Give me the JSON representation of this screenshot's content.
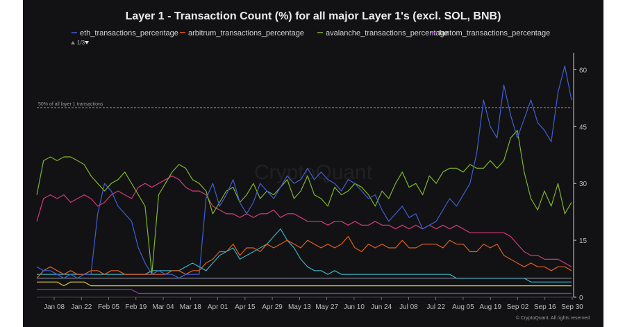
{
  "chart_data": {
    "type": "line",
    "title": "Layer 1 - Transaction Count (%) for all major Layer 1's (excl. SOL, BNB)",
    "xlabel": "",
    "ylabel": "",
    "ylim": [
      0,
      63
    ],
    "yticks": [
      0,
      15,
      30,
      45,
      60
    ],
    "xticks": [
      "Jan 08",
      "Jan 22",
      "Feb 05",
      "Feb 19",
      "Mar 04",
      "Mar 18",
      "Apr 01",
      "Apr 15",
      "Apr 29",
      "May 13",
      "May 27",
      "Jun 10",
      "Jun 24",
      "Jul 08",
      "Jul 22",
      "Aug 05",
      "Aug 19",
      "Sep 02",
      "Sep 16",
      "Sep 30"
    ],
    "legend_position": "top",
    "legend_pager": "1/3",
    "grid": false,
    "reference_line": {
      "y": 50,
      "label": "50% of all layer 1 transactions"
    },
    "watermark": "CryptoQuant",
    "credits": "© CryptoQuant. All rights reserved",
    "series": [
      {
        "name": "eth_transactions_percentage",
        "color": "#3f5fd6",
        "legend": true,
        "values": [
          8,
          7,
          7,
          6,
          5,
          6,
          5,
          6,
          6,
          22,
          30,
          28,
          24,
          22,
          20,
          13,
          9,
          6,
          7,
          6,
          6,
          5,
          6,
          6,
          6,
          26,
          30,
          24,
          27,
          31,
          25,
          22,
          25,
          30,
          28,
          26,
          29,
          32,
          30,
          31,
          34,
          31,
          33,
          31,
          30,
          28,
          31,
          30,
          28,
          26,
          27,
          23,
          20,
          22,
          24,
          21,
          22,
          18,
          19,
          20,
          23,
          26,
          24,
          27,
          30,
          38,
          52,
          45,
          42,
          56,
          48,
          42,
          47,
          52,
          46,
          44,
          41,
          54,
          61,
          52
        ]
      },
      {
        "name": "arbitrum_transactions_percentage",
        "color": "#e0621e",
        "legend": true,
        "values": [
          5,
          7,
          8,
          7,
          6,
          7,
          6,
          6,
          7,
          7,
          6,
          7,
          7,
          6,
          6,
          6,
          6,
          6,
          6,
          6,
          7,
          7,
          6,
          7,
          7,
          9,
          10,
          12,
          12,
          14,
          11,
          13,
          13,
          12,
          14,
          13,
          14,
          15,
          14,
          13,
          15,
          14,
          13,
          14,
          13,
          14,
          16,
          13,
          12,
          14,
          13,
          14,
          13,
          13,
          15,
          13,
          13,
          14,
          14,
          14,
          13,
          15,
          14,
          14,
          12,
          12,
          14,
          13,
          14,
          11,
          10,
          9,
          8,
          9,
          8,
          8,
          7,
          8,
          8,
          7
        ]
      },
      {
        "name": "avalanche_transactions_percentage",
        "color": "#7fb52a",
        "legend": true,
        "values": [
          27,
          36,
          37,
          36,
          37,
          37,
          36,
          35,
          32,
          30,
          28,
          30,
          31,
          33,
          30,
          27,
          24,
          6,
          27,
          30,
          33,
          35,
          34,
          31,
          30,
          28,
          22,
          25,
          28,
          29,
          25,
          27,
          30,
          26,
          28,
          27,
          29,
          31,
          26,
          28,
          32,
          27,
          26,
          24,
          29,
          27,
          28,
          30,
          29,
          27,
          24,
          28,
          26,
          30,
          33,
          29,
          30,
          27,
          32,
          30,
          33,
          34,
          34,
          33,
          35,
          34,
          34,
          36,
          34,
          36,
          42,
          44,
          33,
          26,
          23,
          28,
          24,
          30,
          22,
          25
        ]
      },
      {
        "name": "fantom_transactions_percentage",
        "color": "#9c30c9",
        "legend": true,
        "values": [
          2,
          2,
          2,
          2,
          2,
          2,
          2,
          2,
          2,
          2,
          2,
          2,
          2,
          2,
          2,
          1,
          1,
          1,
          1,
          1,
          1,
          1,
          1,
          1,
          1,
          1,
          1,
          1,
          1,
          1,
          1,
          1,
          1,
          1,
          1,
          1,
          1,
          1,
          1,
          1,
          1,
          1,
          1,
          1,
          1,
          1,
          1,
          1,
          1,
          1,
          1,
          1,
          1,
          1,
          1,
          1,
          1,
          1,
          1,
          1,
          1,
          1,
          1,
          1,
          1,
          1,
          1,
          1,
          1,
          1,
          1,
          1,
          1,
          1,
          1,
          1,
          1,
          1,
          1,
          1
        ]
      },
      {
        "color": "#d43a79",
        "legend": false,
        "values": [
          20,
          26,
          27,
          26,
          27,
          25,
          26,
          27,
          26,
          24,
          25,
          27,
          28,
          27,
          26,
          29,
          30,
          29,
          30,
          31,
          32,
          31,
          29,
          28,
          28,
          27,
          24,
          23,
          22,
          22,
          21,
          22,
          21,
          22,
          22,
          23,
          21,
          22,
          22,
          21,
          20,
          20,
          20,
          19,
          20,
          20,
          19,
          20,
          19,
          19,
          20,
          19,
          19,
          18,
          19,
          18,
          19,
          18,
          19,
          18,
          19,
          18,
          19,
          18,
          17,
          17,
          17,
          17,
          17,
          17,
          16,
          14,
          12,
          11,
          11,
          10,
          10,
          10,
          9,
          8
        ]
      },
      {
        "color": "#36b3c4",
        "legend": false,
        "values": [
          6,
          6,
          6,
          6,
          6,
          6,
          6,
          6,
          6,
          6,
          6,
          6,
          6,
          6,
          6,
          6,
          6,
          7,
          7,
          7,
          7,
          7,
          8,
          9,
          8,
          7,
          9,
          11,
          12,
          13,
          10,
          11,
          12,
          13,
          14,
          16,
          18,
          15,
          13,
          10,
          8,
          7,
          7,
          6,
          7,
          6,
          6,
          6,
          6,
          6,
          6,
          6,
          6,
          6,
          6,
          6,
          6,
          6,
          6,
          6,
          6,
          6,
          5,
          5,
          5,
          5,
          5,
          5,
          5,
          5,
          5,
          5,
          5,
          4,
          4,
          4,
          4,
          4,
          4,
          4
        ]
      },
      {
        "color": "#d9c534",
        "legend": false,
        "values": [
          4,
          4,
          4,
          4,
          3,
          4,
          4,
          4,
          3,
          3,
          3,
          3,
          3,
          3,
          3,
          3,
          3,
          3,
          3,
          3,
          3,
          3,
          3,
          3,
          3,
          3,
          3,
          3,
          3,
          3,
          3,
          3,
          3,
          3,
          3,
          3,
          3,
          3,
          3,
          3,
          3,
          3,
          3,
          3,
          3,
          3,
          3,
          3,
          3,
          3,
          3,
          3,
          3,
          3,
          3,
          3,
          3,
          3,
          3,
          3,
          3,
          3,
          3,
          3,
          3,
          3,
          3,
          3,
          3,
          3,
          3,
          3,
          3,
          3,
          3,
          3,
          3,
          3,
          3,
          3
        ]
      },
      {
        "color": "#8a95a5",
        "legend": false,
        "values": [
          5,
          5,
          5,
          5,
          5,
          5,
          5,
          5,
          5,
          5,
          5,
          5,
          5,
          5,
          5,
          5,
          5,
          5,
          5,
          5,
          5,
          5,
          5,
          5,
          5,
          5,
          5,
          5,
          5,
          5,
          5,
          5,
          5,
          5,
          5,
          5,
          5,
          5,
          5,
          5,
          5,
          5,
          5,
          5,
          5,
          5,
          5,
          5,
          5,
          5,
          5,
          5,
          5,
          5,
          5,
          5,
          5,
          5,
          5,
          5,
          5,
          5,
          5,
          5,
          5,
          5,
          5,
          5,
          5,
          5,
          5,
          5,
          5,
          5,
          5,
          5,
          5,
          5,
          5,
          5
        ]
      }
    ]
  }
}
